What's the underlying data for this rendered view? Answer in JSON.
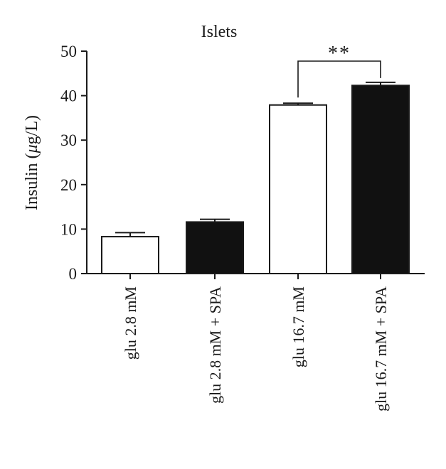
{
  "chart_data": {
    "type": "bar",
    "title": "Islets",
    "ylabel": "Insulin (μg/L)",
    "xlabel": "",
    "ylim": [
      0,
      50
    ],
    "yticks": [
      0,
      10,
      20,
      30,
      40,
      50
    ],
    "ytick_labels": [
      "0",
      "10",
      "20",
      "30",
      "40",
      "50"
    ],
    "grid": false,
    "categories": [
      "glu 2.8 mM",
      "glu 2.8 mM + SPA",
      "glu 16.7 mM",
      "glu 16.7 mM + SPA"
    ],
    "values": [
      8.3,
      11.6,
      37.9,
      42.3
    ],
    "errors": [
      0.9,
      0.6,
      0.4,
      0.7
    ],
    "bar_colors": [
      "#ffffff",
      "#111111",
      "#ffffff",
      "#111111"
    ],
    "significance": [
      {
        "between": [
          2,
          3
        ],
        "label": "**"
      }
    ]
  }
}
